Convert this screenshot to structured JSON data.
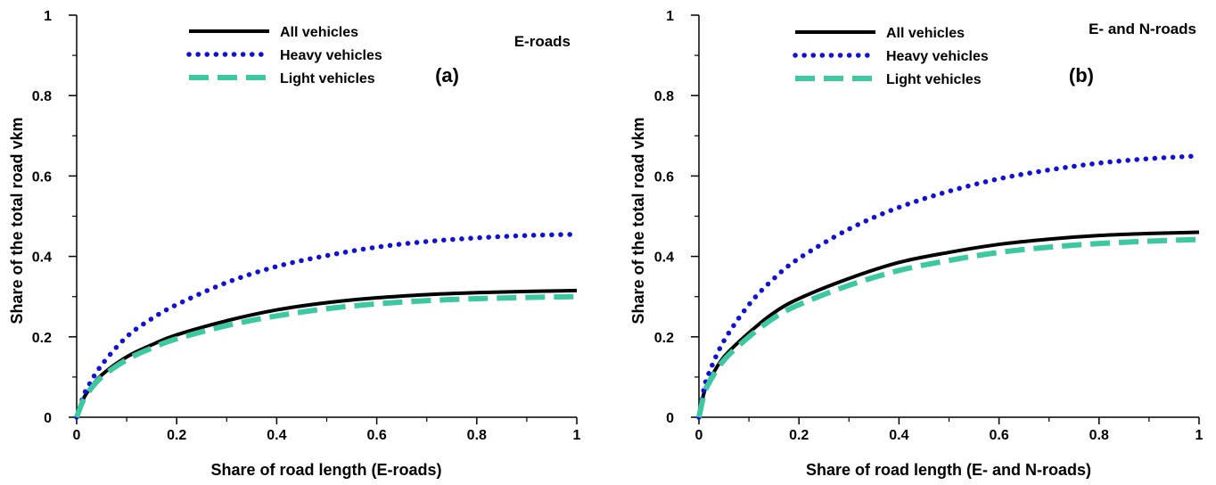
{
  "chart_data": [
    {
      "type": "line",
      "title": "E-roads",
      "panel_label": "(a)",
      "xlabel": "Share of road length (E-roads)",
      "ylabel": "Share of the total road vkm",
      "xlim": [
        0,
        1
      ],
      "ylim": [
        0,
        1
      ],
      "x_ticks": [
        "0",
        "0.2",
        "0.4",
        "0.6",
        "0.8",
        "1"
      ],
      "y_ticks": [
        "0",
        "0.2",
        "0.4",
        "0.6",
        "0.8",
        "1"
      ],
      "x_tick_values": [
        0,
        0.2,
        0.4,
        0.6,
        0.8,
        1
      ],
      "y_tick_values": [
        0,
        0.2,
        0.4,
        0.6,
        0.8,
        1
      ],
      "legend_placement": "top-center",
      "x": [
        0,
        0.01,
        0.02,
        0.05,
        0.1,
        0.15,
        0.2,
        0.3,
        0.4,
        0.5,
        0.6,
        0.7,
        0.8,
        0.9,
        1.0
      ],
      "series": [
        {
          "name": "All vehicles",
          "style": "solid",
          "color": "#000000",
          "values": [
            0,
            0.035,
            0.06,
            0.105,
            0.15,
            0.18,
            0.205,
            0.24,
            0.267,
            0.285,
            0.297,
            0.305,
            0.31,
            0.313,
            0.315
          ]
        },
        {
          "name": "Heavy vehicles",
          "style": "dotted",
          "color": "#1010d8",
          "values": [
            0,
            0.04,
            0.07,
            0.13,
            0.2,
            0.245,
            0.28,
            0.335,
            0.375,
            0.402,
            0.423,
            0.437,
            0.446,
            0.452,
            0.455
          ]
        },
        {
          "name": "Light vehicles",
          "style": "dashed",
          "color": "#3cc8a0",
          "values": [
            0,
            0.033,
            0.057,
            0.1,
            0.143,
            0.172,
            0.195,
            0.228,
            0.252,
            0.27,
            0.282,
            0.29,
            0.295,
            0.298,
            0.3
          ]
        }
      ]
    },
    {
      "type": "line",
      "title": "E- and N-roads",
      "panel_label": "(b)",
      "xlabel": "Share of road length (E- and N-roads)",
      "ylabel": "Share of the total road vkm",
      "xlim": [
        0,
        1
      ],
      "ylim": [
        0,
        1
      ],
      "x_ticks": [
        "0",
        "0.2",
        "0.4",
        "0.6",
        "0.8",
        "1"
      ],
      "y_ticks": [
        "0",
        "0.2",
        "0.4",
        "0.6",
        "0.8",
        "1"
      ],
      "x_tick_values": [
        0,
        0.2,
        0.4,
        0.6,
        0.8,
        1
      ],
      "y_tick_values": [
        0,
        0.2,
        0.4,
        0.6,
        0.8,
        1
      ],
      "legend_placement": "top-center",
      "x": [
        0,
        0.01,
        0.02,
        0.05,
        0.1,
        0.15,
        0.2,
        0.3,
        0.4,
        0.5,
        0.6,
        0.7,
        0.8,
        0.9,
        1.0
      ],
      "series": [
        {
          "name": "All vehicles",
          "style": "solid",
          "color": "#000000",
          "values": [
            0,
            0.06,
            0.09,
            0.15,
            0.21,
            0.26,
            0.295,
            0.345,
            0.385,
            0.41,
            0.43,
            0.443,
            0.452,
            0.457,
            0.46
          ]
        },
        {
          "name": "Heavy vehicles",
          "style": "dotted",
          "color": "#1010d8",
          "values": [
            0,
            0.07,
            0.11,
            0.19,
            0.28,
            0.345,
            0.395,
            0.468,
            0.522,
            0.562,
            0.593,
            0.615,
            0.632,
            0.643,
            0.65
          ]
        },
        {
          "name": "Light vehicles",
          "style": "dashed",
          "color": "#3cc8a0",
          "values": [
            0,
            0.055,
            0.085,
            0.142,
            0.2,
            0.247,
            0.28,
            0.328,
            0.365,
            0.39,
            0.41,
            0.423,
            0.432,
            0.438,
            0.442
          ]
        }
      ]
    }
  ]
}
